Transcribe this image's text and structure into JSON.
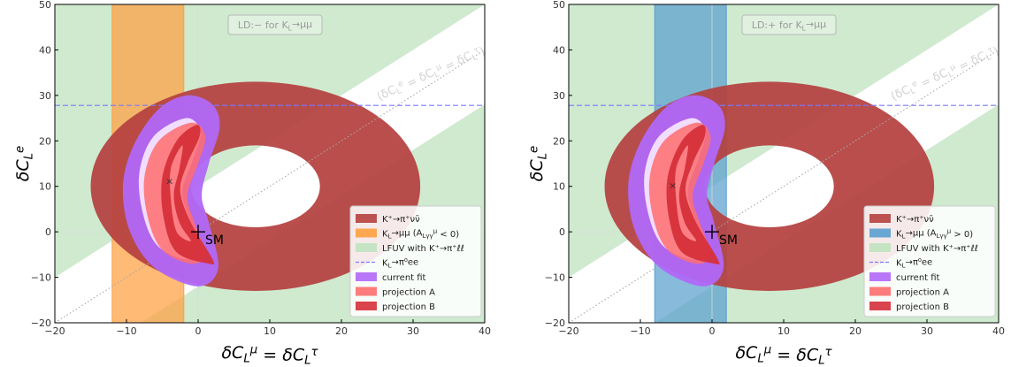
{
  "chart_data": [
    {
      "type": "contour",
      "xlabel": "δC_L^μ = δC_L^τ",
      "ylabel": "δC_L^e",
      "xlim": [
        -20,
        40
      ],
      "ylim": [
        -20,
        50
      ],
      "xticks": [
        "−20",
        "−10",
        "0",
        "10",
        "20",
        "30",
        "40"
      ],
      "yticks": [
        "−20",
        "−10",
        "0",
        "10",
        "20",
        "30",
        "40",
        "50"
      ],
      "ld_label": "LD:− for K_L→μμ",
      "diagonal_label": "(δC_L^e = δC_L^μ = δC_L^τ)",
      "sm_label": "SM",
      "sm_point": [
        0,
        0
      ],
      "best_fit_point": [
        -4,
        11
      ],
      "knunu_ring": {
        "center": [
          8,
          10
        ],
        "inner_radius": 9,
        "outer_radius": 23
      },
      "klmumu_band": {
        "x_range": [
          -12,
          -2
        ],
        "color": "#ffa040"
      },
      "pi0ee_line_y": 27.8,
      "legend_position": "lower-right",
      "legend": [
        {
          "label": "K⁺→π⁺νν̄",
          "color": "#b5413f",
          "style": "patch"
        },
        {
          "label": "K_L→μμ (A^μ_{Lγγ} < 0)",
          "color": "#ffa040",
          "style": "patch"
        },
        {
          "label": "LFUV with K⁺→π⁺ℓℓ",
          "color": "#bfe3bf",
          "style": "patch"
        },
        {
          "label": "K_L→π⁰ee",
          "color": "#7a7aff",
          "style": "dashed"
        },
        {
          "label": "current fit",
          "color": "#b068f7",
          "style": "patch"
        },
        {
          "label": "projection A",
          "color": "#ff6e6e",
          "style": "patch"
        },
        {
          "label": "projection B",
          "color": "#d6303a",
          "style": "patch"
        }
      ]
    },
    {
      "type": "contour",
      "xlabel": "δC_L^μ = δC_L^τ",
      "ylabel": "δC_L^e",
      "xlim": [
        -20,
        40
      ],
      "ylim": [
        -20,
        50
      ],
      "xticks": [
        "−20",
        "−10",
        "0",
        "10",
        "20",
        "30",
        "40"
      ],
      "yticks": [
        "−20",
        "−10",
        "0",
        "10",
        "20",
        "30",
        "40",
        "50"
      ],
      "ld_label": "LD:+ for K_L→μμ",
      "diagonal_label": "(δC_L^e = δC_L^μ = δC_L^τ)",
      "sm_label": "SM",
      "sm_point": [
        0,
        0
      ],
      "best_fit_point": [
        -5.5,
        10
      ],
      "knunu_ring": {
        "center": [
          8,
          10
        ],
        "inner_radius": 9,
        "outer_radius": 23
      },
      "klmumu_band": {
        "x_range": [
          -8,
          2
        ],
        "color": "#5aa0cf"
      },
      "pi0ee_line_y": 27.8,
      "legend_position": "lower-right",
      "legend": [
        {
          "label": "K⁺→π⁺νν̄",
          "color": "#b5413f",
          "style": "patch"
        },
        {
          "label": "K_L→μμ (A^μ_{Lγγ} > 0)",
          "color": "#5aa0cf",
          "style": "patch"
        },
        {
          "label": "LFUV with K⁺→π⁺ℓℓ",
          "color": "#bfe3bf",
          "style": "patch"
        },
        {
          "label": "K_L→π⁰ee",
          "color": "#7a7aff",
          "style": "dashed"
        },
        {
          "label": "current fit",
          "color": "#b068f7",
          "style": "patch"
        },
        {
          "label": "projection A",
          "color": "#ff6e6e",
          "style": "patch"
        },
        {
          "label": "projection B",
          "color": "#d6303a",
          "style": "patch"
        }
      ]
    }
  ]
}
